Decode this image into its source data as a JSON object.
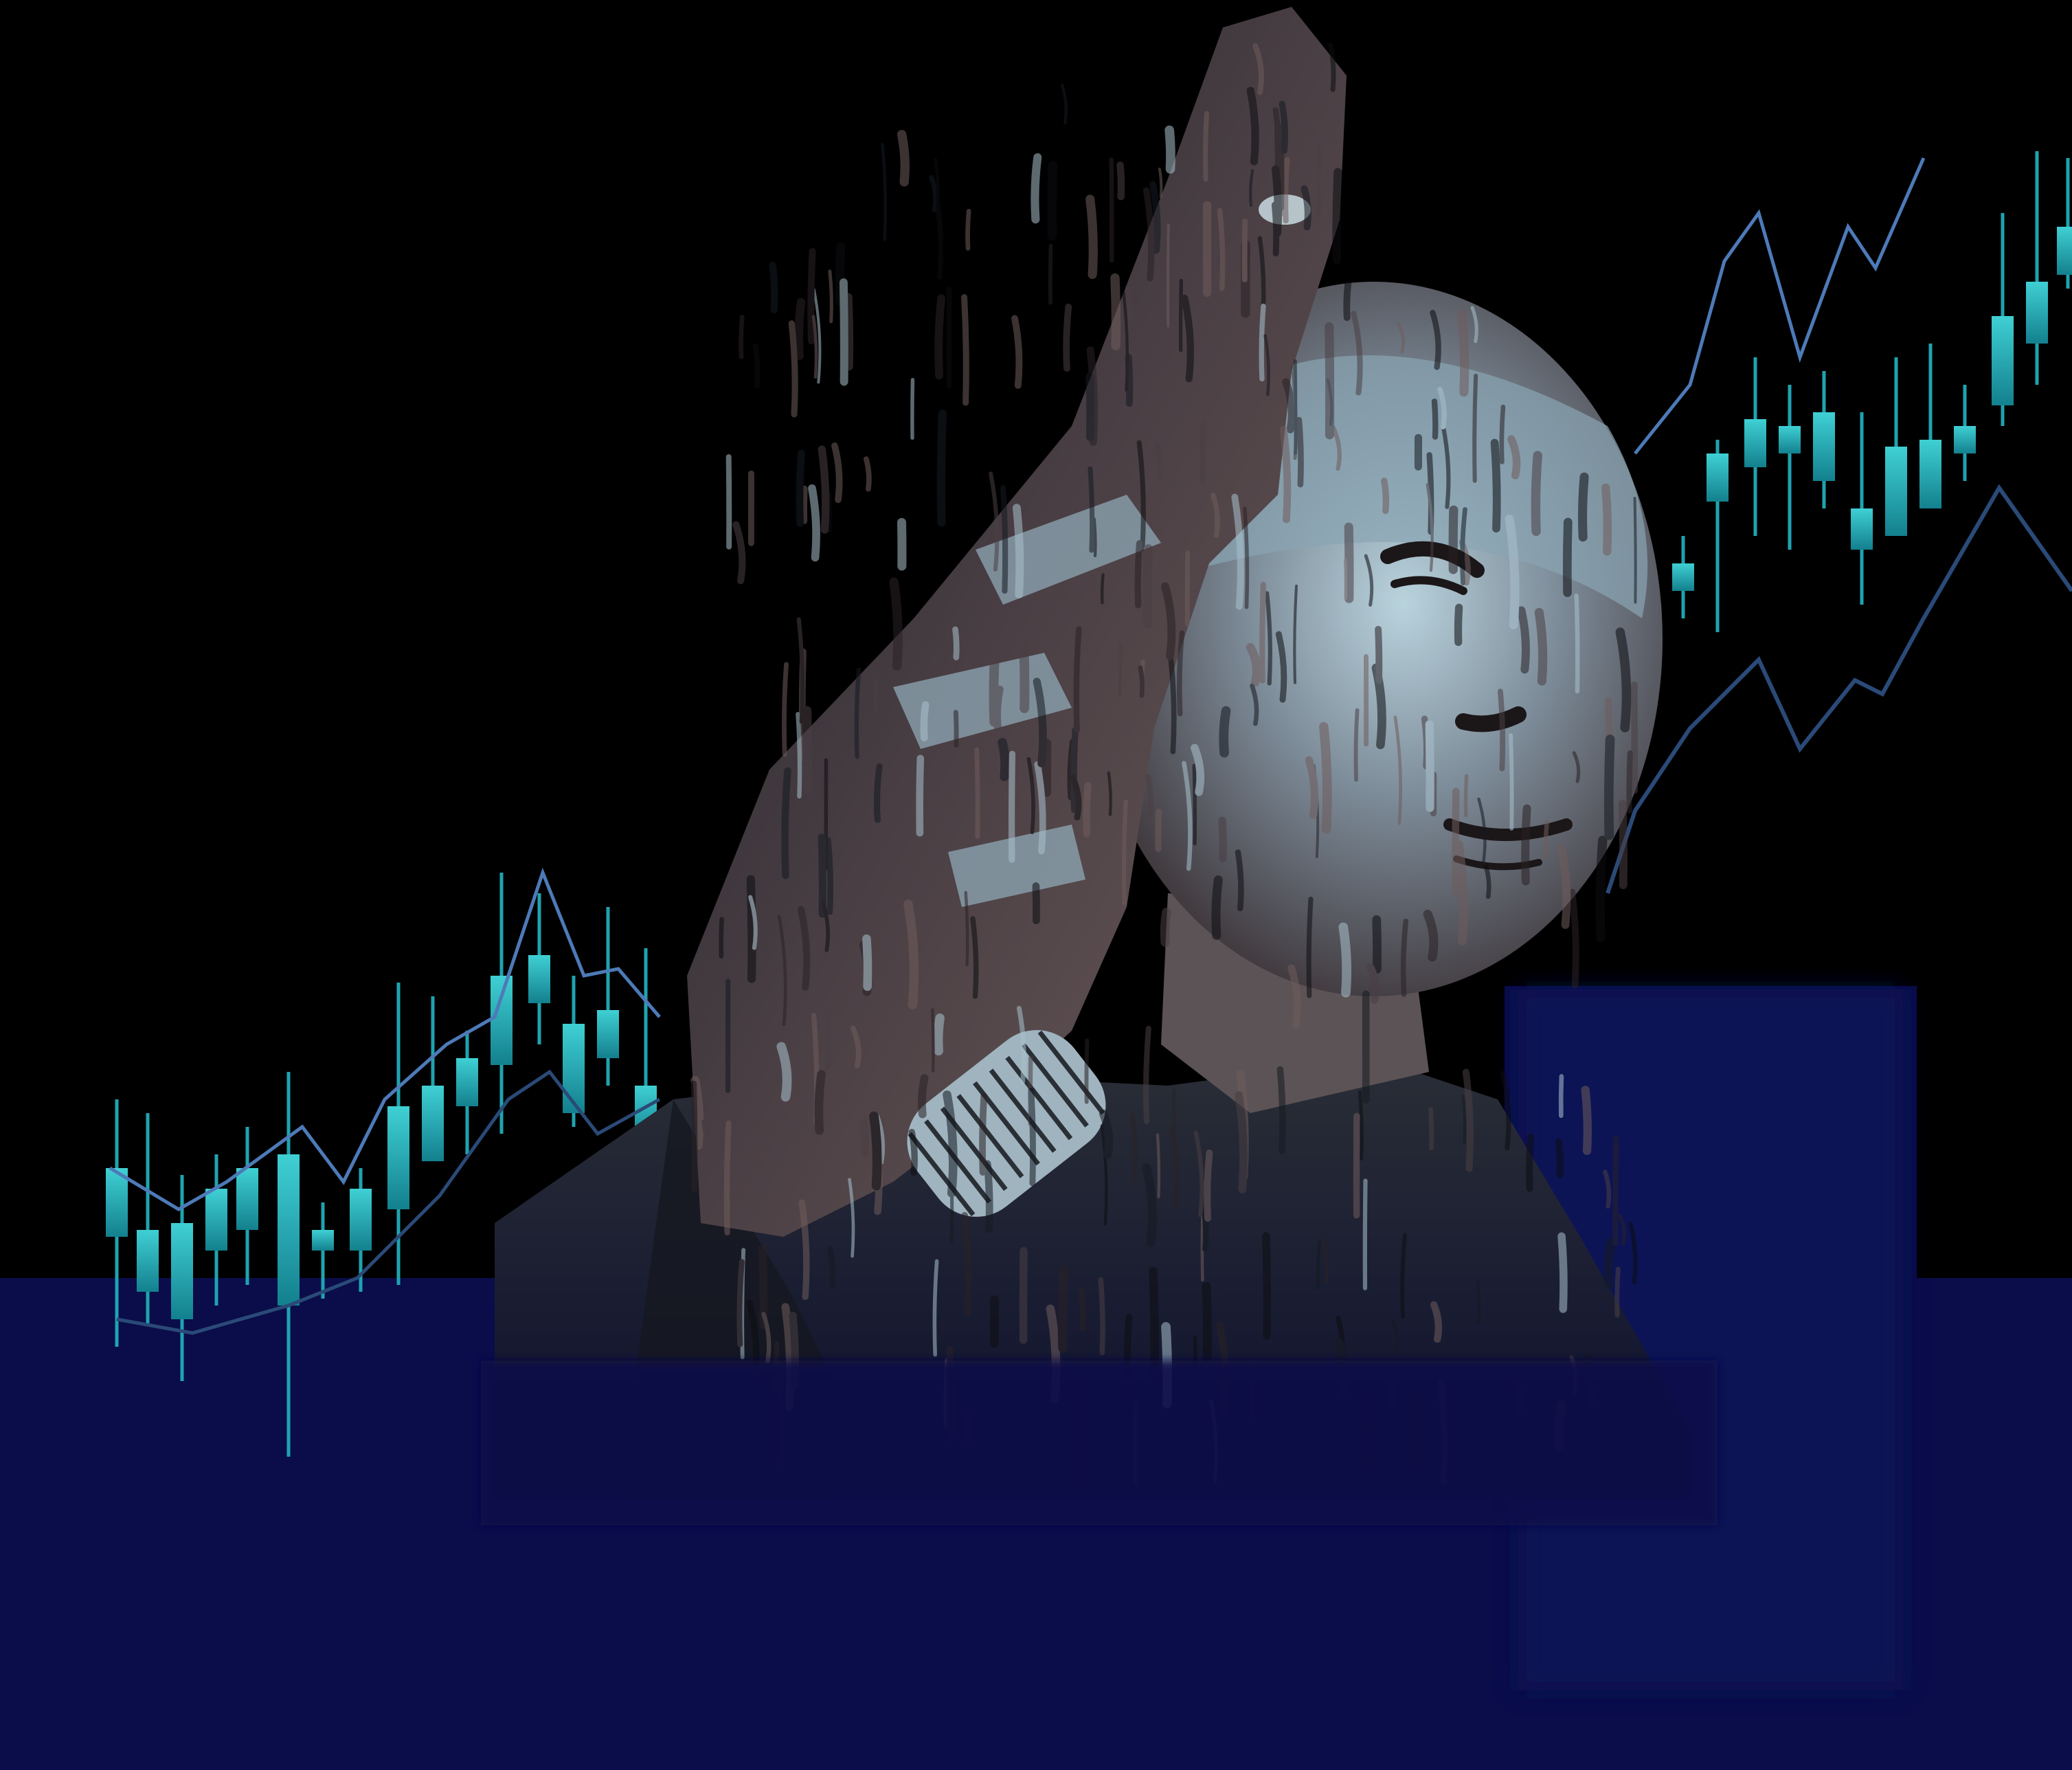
{
  "scene": {
    "description_kind": "stylized illustration, no printed text",
    "colors": {
      "background": "#000000",
      "navy": "#0a0d4a",
      "candle_teal": "#1fa3b0",
      "candle_teal_light": "#3fd0d4",
      "line_blue": "#4d7ab8",
      "line_dark": "#2a4a78",
      "skin_mid": "#6e5a58",
      "skin_light": "#a7c2cf",
      "jacket_dark": "#1a1d24"
    },
    "icons": [
      "hand-thumbs-up-icon",
      "person-portrait"
    ]
  }
}
